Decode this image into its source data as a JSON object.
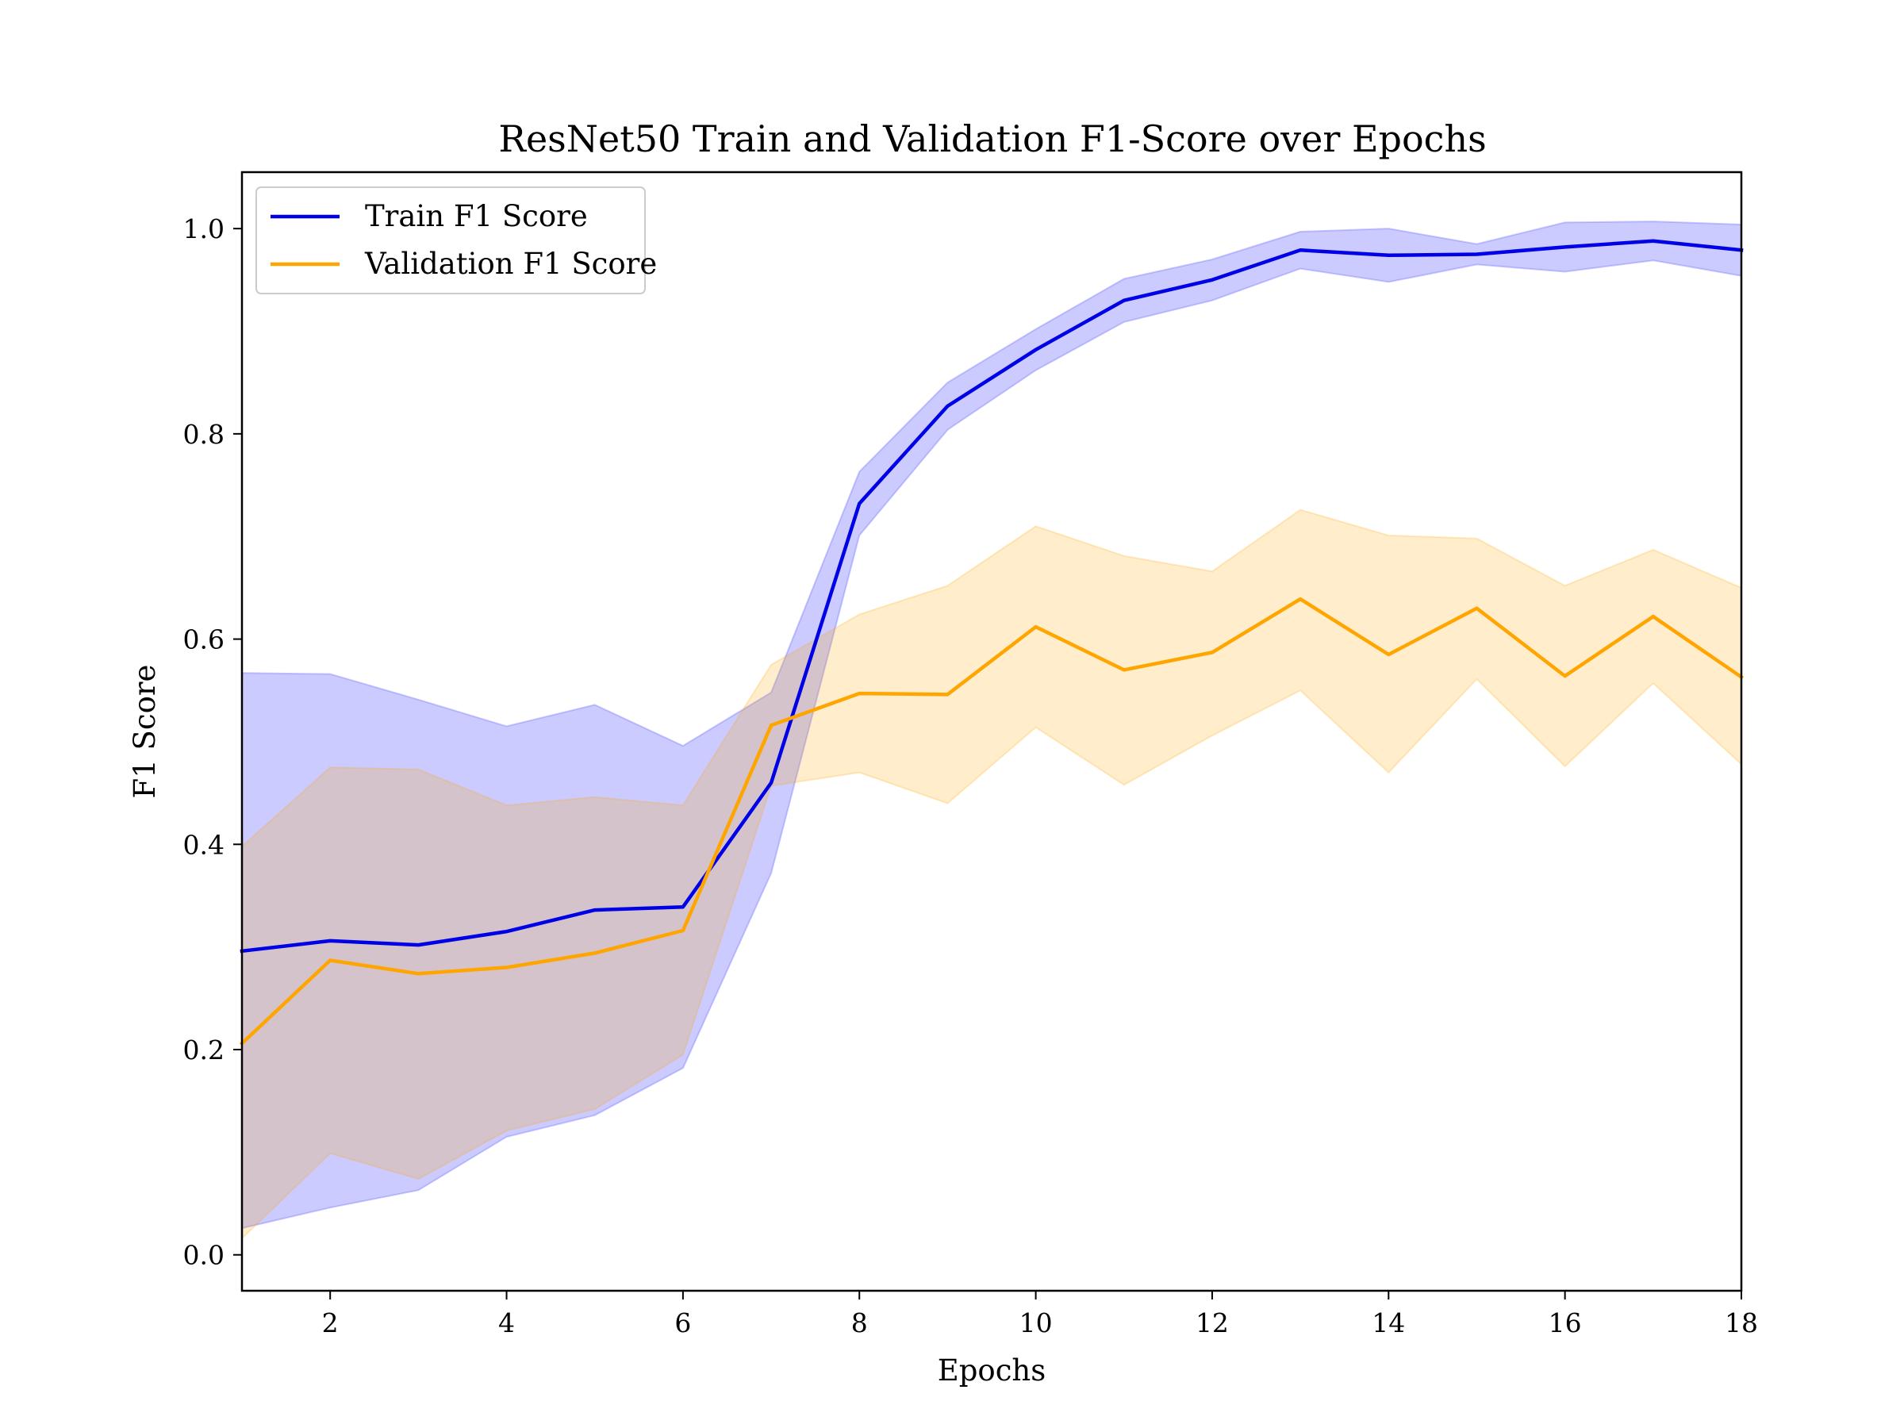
{
  "chart_data": {
    "type": "line",
    "title": "ResNet50 Train and Validation F1-Score over Epochs",
    "xlabel": "Epochs",
    "ylabel": "F1 Score",
    "xlim": [
      1,
      18
    ],
    "ylim": [
      -0.035,
      1.055
    ],
    "x_ticks": [
      2,
      4,
      6,
      8,
      10,
      12,
      14,
      16,
      18
    ],
    "y_ticks": [
      0.0,
      0.2,
      0.4,
      0.6,
      0.8,
      1.0
    ],
    "x_tick_labels": [
      "2",
      "4",
      "6",
      "8",
      "10",
      "12",
      "14",
      "16",
      "18"
    ],
    "y_tick_labels": [
      "0.0",
      "0.2",
      "0.4",
      "0.6",
      "0.8",
      "1.0"
    ],
    "grid": false,
    "legend_position": "top-left",
    "x": [
      1,
      2,
      3,
      4,
      5,
      6,
      7,
      8,
      9,
      10,
      11,
      12,
      13,
      14,
      15,
      16,
      17,
      18
    ],
    "series": [
      {
        "name": "Train F1 Score",
        "color": "#0000e6",
        "band_color": "#6666ff",
        "values": [
          0.296,
          0.306,
          0.302,
          0.315,
          0.336,
          0.339,
          0.46,
          0.732,
          0.827,
          0.882,
          0.93,
          0.95,
          0.979,
          0.974,
          0.975,
          0.982,
          0.988,
          0.979
        ],
        "upper": [
          0.567,
          0.566,
          0.541,
          0.515,
          0.536,
          0.496,
          0.548,
          0.763,
          0.85,
          0.902,
          0.951,
          0.97,
          0.997,
          1.0,
          0.985,
          1.006,
          1.007,
          1.004
        ],
        "lower": [
          0.026,
          0.046,
          0.063,
          0.115,
          0.136,
          0.182,
          0.372,
          0.701,
          0.804,
          0.862,
          0.909,
          0.93,
          0.961,
          0.948,
          0.965,
          0.958,
          0.969,
          0.954
        ]
      },
      {
        "name": "Validation F1 Score",
        "color": "#ffa500",
        "band_color": "#ffa500",
        "values": [
          0.206,
          0.287,
          0.274,
          0.28,
          0.294,
          0.316,
          0.516,
          0.547,
          0.546,
          0.612,
          0.57,
          0.587,
          0.639,
          0.585,
          0.63,
          0.564,
          0.622,
          0.563
        ],
        "upper": [
          0.398,
          0.475,
          0.473,
          0.438,
          0.446,
          0.438,
          0.575,
          0.624,
          0.652,
          0.71,
          0.681,
          0.666,
          0.726,
          0.701,
          0.698,
          0.652,
          0.687,
          0.65
        ],
        "lower": [
          0.016,
          0.099,
          0.074,
          0.121,
          0.142,
          0.195,
          0.457,
          0.47,
          0.44,
          0.514,
          0.458,
          0.506,
          0.55,
          0.47,
          0.561,
          0.476,
          0.557,
          0.478
        ]
      }
    ]
  }
}
